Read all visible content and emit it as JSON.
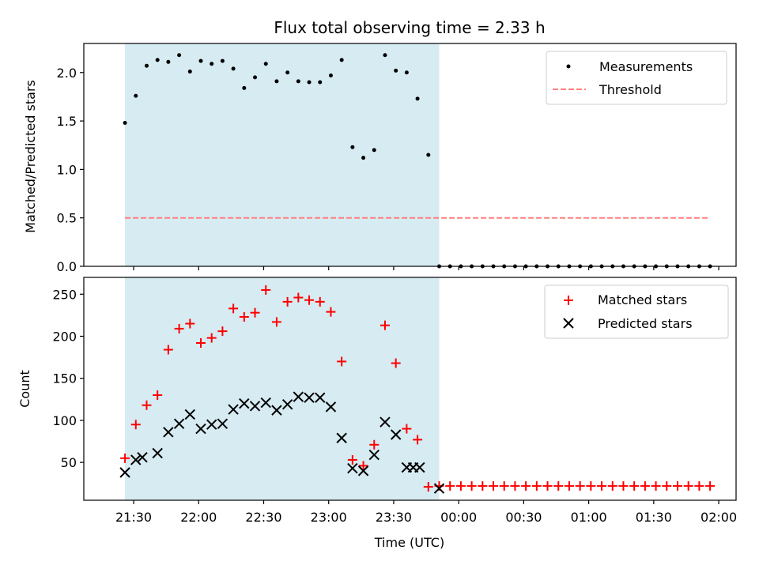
{
  "chart_data": [
    {
      "type": "scatter",
      "title": "Flux total observing time = 2.33 h",
      "ylabel": "Matched/Predicted stars",
      "ylim": [
        0,
        2.3
      ],
      "yticks": [
        0.0,
        0.5,
        1.0,
        1.5,
        2.0
      ],
      "ytick_labels": [
        "0.0",
        "0.5",
        "1.0",
        "1.5",
        "2.0"
      ],
      "shaded_span": [
        "21:26",
        "23:51"
      ],
      "shade_color": "#add8e6",
      "legend_position": "top-right",
      "series": [
        {
          "name": "Measurements",
          "marker": "dot",
          "color": "#000000",
          "x": [
            "21:26",
            "21:31",
            "21:36",
            "21:41",
            "21:46",
            "21:51",
            "21:56",
            "22:01",
            "22:06",
            "22:11",
            "22:16",
            "22:21",
            "22:26",
            "22:31",
            "22:36",
            "22:41",
            "22:46",
            "22:51",
            "22:56",
            "23:01",
            "23:06",
            "23:11",
            "23:16",
            "23:21",
            "23:26",
            "23:31",
            "23:36",
            "23:41",
            "23:46",
            "23:51",
            "23:56",
            "00:01",
            "00:06",
            "00:11",
            "00:16",
            "00:21",
            "00:26",
            "00:31",
            "00:36",
            "00:41",
            "00:46",
            "00:51",
            "00:56",
            "01:01",
            "01:06",
            "01:11",
            "01:16",
            "01:21",
            "01:26",
            "01:31",
            "01:36",
            "01:41",
            "01:46",
            "01:51",
            "01:56"
          ],
          "y": [
            1.48,
            1.76,
            2.07,
            2.13,
            2.11,
            2.18,
            2.01,
            2.12,
            2.09,
            2.12,
            2.04,
            1.84,
            1.95,
            2.09,
            1.91,
            2.0,
            1.91,
            1.9,
            1.9,
            1.97,
            2.13,
            1.23,
            1.12,
            1.2,
            2.18,
            2.02,
            2.0,
            1.73,
            1.15,
            0,
            0,
            0,
            0,
            0,
            0,
            0,
            0,
            0,
            0,
            0,
            0,
            0,
            0,
            0,
            0,
            0,
            0,
            0,
            0,
            0,
            0,
            0,
            0,
            0,
            0
          ]
        },
        {
          "name": "Threshold",
          "type": "line",
          "style": "dashed",
          "color": "#ff7f7f",
          "x": [
            "21:26",
            "01:56"
          ],
          "y": [
            0.5,
            0.5
          ]
        }
      ]
    },
    {
      "type": "scatter",
      "xlabel": "Time (UTC)",
      "ylabel": "Count",
      "ylim": [
        5,
        270
      ],
      "yticks": [
        50,
        100,
        150,
        200,
        250
      ],
      "ytick_labels": [
        "50",
        "100",
        "150",
        "200",
        "250"
      ],
      "xlim": [
        "21:07",
        "02:08"
      ],
      "xticks": [
        "21:30",
        "22:00",
        "22:30",
        "23:00",
        "23:30",
        "00:00",
        "00:30",
        "01:00",
        "01:30",
        "02:00"
      ],
      "xtick_labels": [
        "21:30",
        "22:00",
        "22:30",
        "23:00",
        "23:30",
        "00:00",
        "00:30",
        "01:00",
        "01:30",
        "02:00"
      ],
      "shaded_span": [
        "21:26",
        "23:51"
      ],
      "shade_color": "#add8e6",
      "legend_position": "top-right",
      "series": [
        {
          "name": "Matched stars",
          "marker": "plus",
          "color": "#ff0000",
          "x": [
            "21:26",
            "21:31",
            "21:36",
            "21:41",
            "21:46",
            "21:51",
            "21:56",
            "22:01",
            "22:06",
            "22:11",
            "22:16",
            "22:21",
            "22:26",
            "22:31",
            "22:36",
            "22:41",
            "22:46",
            "22:51",
            "22:56",
            "23:01",
            "23:06",
            "23:11",
            "23:16",
            "23:21",
            "23:26",
            "23:31",
            "23:36",
            "23:41",
            "23:46",
            "23:51",
            "23:56",
            "00:01",
            "00:06",
            "00:11",
            "00:16",
            "00:21",
            "00:26",
            "00:31",
            "00:36",
            "00:41",
            "00:46",
            "00:51",
            "00:56",
            "01:01",
            "01:06",
            "01:11",
            "01:16",
            "01:21",
            "01:26",
            "01:31",
            "01:36",
            "01:41",
            "01:46",
            "01:51",
            "01:56"
          ],
          "y": [
            55,
            95,
            118,
            130,
            184,
            209,
            215,
            192,
            198,
            206,
            233,
            223,
            228,
            255,
            217,
            241,
            246,
            243,
            241,
            229,
            170,
            53,
            46,
            71,
            213,
            168,
            90,
            77,
            21,
            22,
            22,
            22,
            22,
            22,
            22,
            22,
            22,
            22,
            22,
            22,
            22,
            22,
            22,
            22,
            22,
            22,
            22,
            22,
            22,
            22,
            22,
            22,
            22,
            22,
            22
          ]
        },
        {
          "name": "Predicted stars",
          "marker": "x",
          "color": "#000000",
          "x": [
            "21:26",
            "21:31",
            "21:34",
            "21:41",
            "21:46",
            "21:51",
            "21:56",
            "22:01",
            "22:06",
            "22:11",
            "22:16",
            "22:21",
            "22:26",
            "22:31",
            "22:36",
            "22:41",
            "22:46",
            "22:51",
            "22:56",
            "23:01",
            "23:06",
            "23:11",
            "23:16",
            "23:21",
            "23:26",
            "23:31",
            "23:36",
            "23:39",
            "23:42",
            "23:51"
          ],
          "y": [
            38,
            53,
            56,
            61,
            86,
            96,
            107,
            90,
            95,
            96,
            113,
            120,
            117,
            121,
            112,
            119,
            128,
            127,
            127,
            116,
            79,
            43,
            40,
            59,
            98,
            83,
            44,
            44,
            44,
            19
          ]
        }
      ]
    }
  ]
}
